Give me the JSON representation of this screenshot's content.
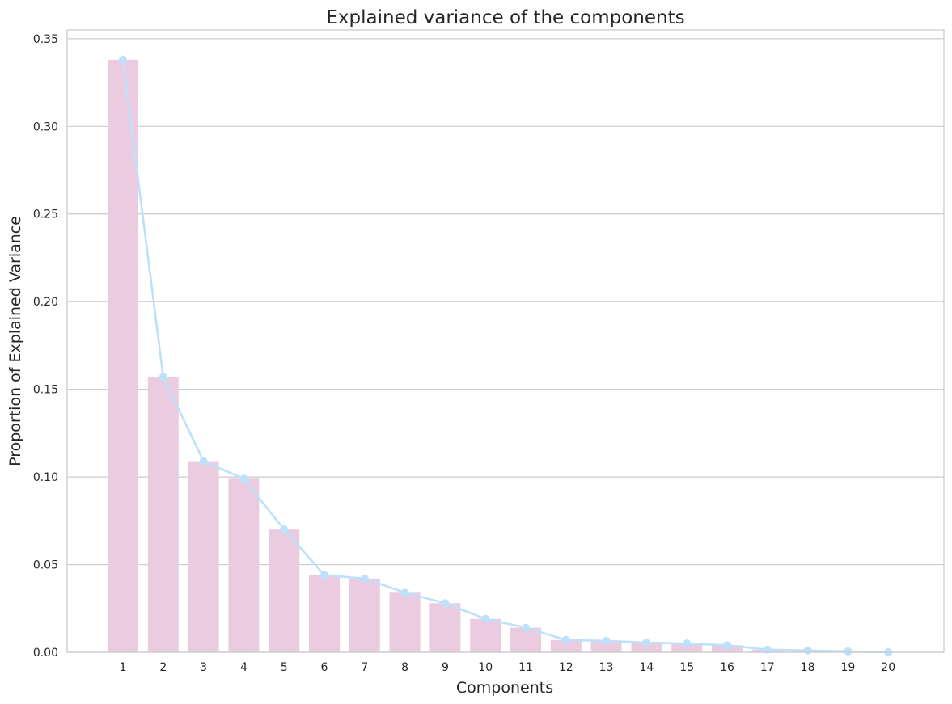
{
  "chart_data": {
    "type": "bar",
    "title": "Explained variance of the components",
    "xlabel": "Components",
    "ylabel": "Proportion of Explained Variance",
    "categories": [
      "1",
      "2",
      "3",
      "4",
      "5",
      "6",
      "7",
      "8",
      "9",
      "10",
      "11",
      "12",
      "13",
      "14",
      "15",
      "16",
      "17",
      "18",
      "19",
      "20"
    ],
    "values": [
      0.338,
      0.157,
      0.109,
      0.099,
      0.07,
      0.044,
      0.042,
      0.034,
      0.028,
      0.019,
      0.014,
      0.007,
      0.0065,
      0.0055,
      0.005,
      0.004,
      0.0015,
      0.001,
      0.0005,
      0.0
    ],
    "line_values": [
      0.338,
      0.157,
      0.109,
      0.099,
      0.07,
      0.044,
      0.042,
      0.034,
      0.028,
      0.019,
      0.014,
      0.007,
      0.0065,
      0.0055,
      0.005,
      0.004,
      0.0015,
      0.001,
      0.0005,
      0.0
    ],
    "ylim": [
      0,
      0.355
    ],
    "yticks": [
      "0.00",
      "0.05",
      "0.10",
      "0.15",
      "0.20",
      "0.25",
      "0.30",
      "0.35"
    ],
    "ytick_values": [
      0,
      0.05,
      0.1,
      0.15,
      0.2,
      0.25,
      0.3,
      0.35
    ],
    "grid": "horizontal",
    "colors": {
      "bar": "#ebcbe0",
      "line": "#bde0fb",
      "grid": "#cccccc",
      "frame": "#cccccc"
    }
  }
}
